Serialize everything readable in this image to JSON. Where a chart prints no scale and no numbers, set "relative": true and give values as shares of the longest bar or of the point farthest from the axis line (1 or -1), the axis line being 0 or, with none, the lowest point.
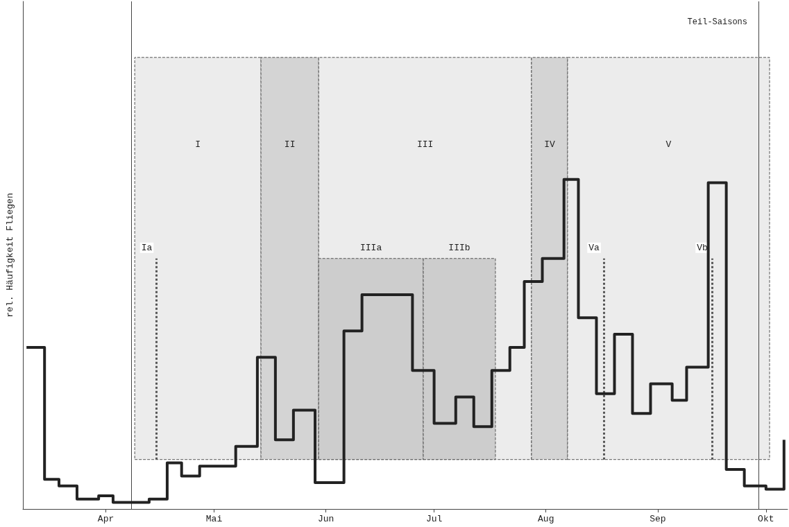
{
  "chart_data": {
    "type": "step",
    "ylabel": "rel. Häufigkeit Fliegen",
    "relative": true,
    "marker": "none",
    "color": "#222222",
    "x": [
      "--03-10",
      "--03-15",
      "--03-19",
      "--03-24",
      "--03-30",
      "--04-03",
      "--04-13",
      "--04-18",
      "--04-22",
      "--04-27",
      "--05-07",
      "--05-13",
      "--05-18",
      "--05-23",
      "--05-29",
      "--06-06",
      "--06-11",
      "--06-25",
      "--07-01",
      "--07-07",
      "--07-12",
      "--07-17",
      "--07-22",
      "--07-26",
      "--07-31",
      "--08-06",
      "--08-10",
      "--08-15",
      "--08-20",
      "--08-25",
      "--08-30",
      "--09-05",
      "--09-09",
      "--09-15",
      "--09-20",
      "--09-25",
      "--10-01",
      "--10-06"
    ],
    "values": [
      0.49,
      0.09,
      0.07,
      0.03,
      0.04,
      0.02,
      0.03,
      0.14,
      0.1,
      0.13,
      0.19,
      0.46,
      0.21,
      0.3,
      0.08,
      0.54,
      0.65,
      0.42,
      0.26,
      0.34,
      0.25,
      0.42,
      0.49,
      0.69,
      0.76,
      1.0,
      0.58,
      0.35,
      0.53,
      0.29,
      0.38,
      0.33,
      0.43,
      0.99,
      0.12,
      0.07,
      0.06,
      0.21
    ],
    "xlim": [
      "--03-09",
      "--10-07"
    ],
    "xticks": [
      {
        "value": "--04-01",
        "label": "Apr"
      },
      {
        "value": "--05-01",
        "label": "Mai"
      },
      {
        "value": "--06-01",
        "label": "Jun"
      },
      {
        "value": "--07-01",
        "label": "Jul"
      },
      {
        "value": "--08-01",
        "label": "Aug"
      },
      {
        "value": "--09-01",
        "label": "Sep"
      },
      {
        "value": "--10-01",
        "label": "Okt"
      }
    ],
    "bands": [
      {
        "axis": "x",
        "from": "--04-09",
        "to": "--05-14",
        "label": "I",
        "color": "#ececec"
      },
      {
        "axis": "x",
        "from": "--05-14",
        "to": "--05-30",
        "label": "II",
        "color": "#d4d4d4"
      },
      {
        "axis": "x",
        "from": "--05-30",
        "to": "--07-28",
        "label": "III",
        "color": "#ececec"
      },
      {
        "axis": "x",
        "from": "--07-28",
        "to": "--08-07",
        "label": "IV",
        "color": "#d4d4d4"
      },
      {
        "axis": "x",
        "from": "--08-07",
        "to": "--10-02",
        "label": "V",
        "color": "#ececec"
      },
      {
        "axis": "x",
        "from": "--05-30",
        "to": "--06-28",
        "label": "IIIa",
        "color": "#cdcdcd"
      },
      {
        "axis": "x",
        "from": "--06-28",
        "to": "--07-18",
        "label": "IIIb",
        "color": "#cdcdcd"
      }
    ],
    "ref_lines": [
      {
        "axis": "x",
        "value": "--04-08",
        "color": "#444444"
      },
      {
        "axis": "x",
        "value": "--09-29",
        "color": "#444444"
      },
      {
        "axis": "x",
        "value": "--04-15",
        "label": "Ia",
        "color": "#555555",
        "line_style": "dotted"
      },
      {
        "axis": "x",
        "value": "--08-17",
        "label": "Va",
        "color": "#555555",
        "line_style": "dotted"
      },
      {
        "axis": "x",
        "value": "--09-16",
        "label": "Vb",
        "color": "#555555",
        "line_style": "dotted"
      }
    ],
    "annotations": [
      "Teil-Saisons"
    ]
  }
}
